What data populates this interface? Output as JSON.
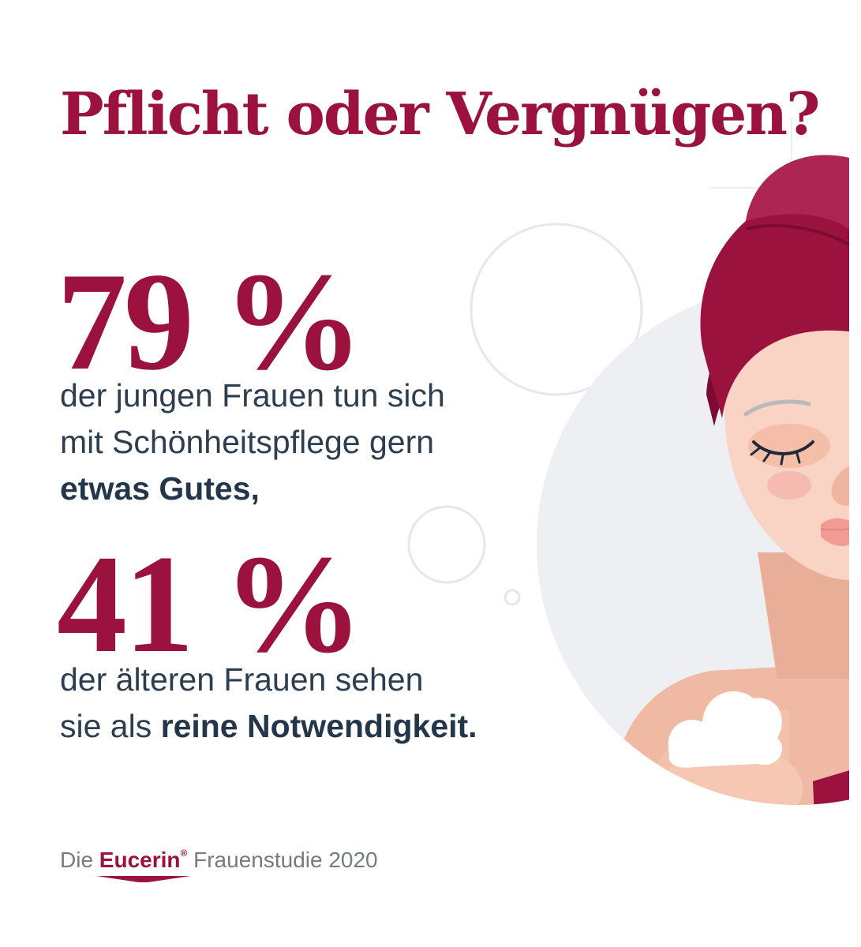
{
  "title": "Pflicht oder Vergnügen?",
  "stat_1": {
    "value": "79 %",
    "line_1": "der jungen Frauen tun sich",
    "line_2": "mit Schönheitspflege gern",
    "line_3_bold": "etwas Gutes,"
  },
  "stat_2": {
    "value": "41 %",
    "line_1": "der älteren Frauen sehen",
    "line_2_prefix": "sie als ",
    "line_2_bold": "reine Notwendigkeit."
  },
  "source": {
    "prefix": "Die",
    "brand": "Eucerin",
    "brand_mark": "®",
    "suffix": "Frauenstudie 2020"
  },
  "colors": {
    "accent": "#9b123f",
    "text": "#2d3e50",
    "skin": "#f6c7b2",
    "backdrop": "#eeeff2"
  },
  "icons": [
    "woman-with-towel-illustration",
    "cream-dollop-icon",
    "bubble-icon"
  ]
}
